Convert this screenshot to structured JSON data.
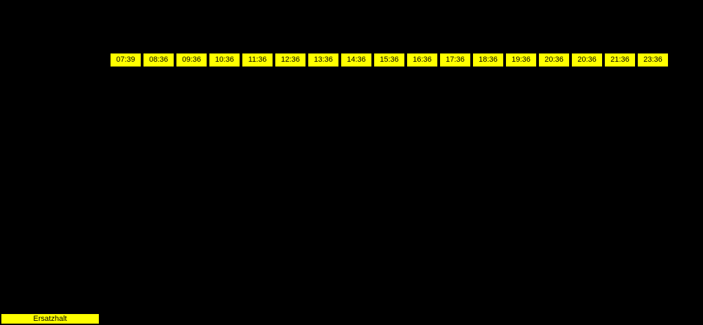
{
  "background_color": "#000000",
  "timetable": {
    "times": [
      "07:39",
      "08:36",
      "09:36",
      "10:36",
      "11:36",
      "12:36",
      "13:36",
      "14:36",
      "15:36",
      "16:36",
      "17:36",
      "18:36",
      "19:36",
      "20:36",
      "20:36",
      "21:36",
      "23:36"
    ],
    "cell_color": "#ffff00",
    "text_color": "#000000"
  },
  "legend": {
    "label": "Ersatzhalt",
    "box_color": "#ffff00",
    "text_color": "#000000"
  }
}
